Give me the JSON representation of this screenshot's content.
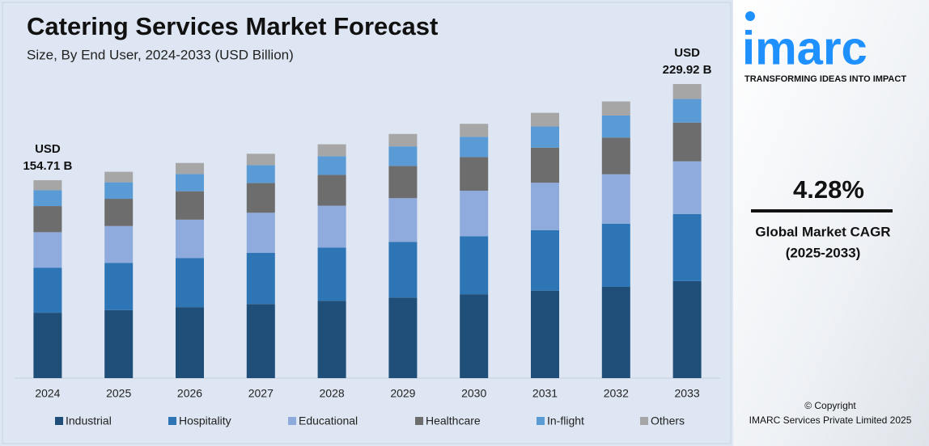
{
  "chart_data": {
    "type": "stacked_bar",
    "title": "Catering Services Market Forecast",
    "subtitle": "Size, By End User, 2024-2033 (USD Billion)",
    "categories": [
      "2024",
      "2025",
      "2026",
      "2027",
      "2028",
      "2029",
      "2030",
      "2031",
      "2032",
      "2033"
    ],
    "series": [
      {
        "name": "Industrial",
        "color": "#1f4e79",
        "values": [
          51.1,
          53.2,
          55.5,
          57.9,
          60.4,
          63.0,
          65.6,
          68.4,
          71.4,
          75.9
        ]
      },
      {
        "name": "Hospitality",
        "color": "#2e75b6",
        "values": [
          35.3,
          36.8,
          38.3,
          40.0,
          41.7,
          43.5,
          45.3,
          47.3,
          49.3,
          52.4
        ]
      },
      {
        "name": "Educational",
        "color": "#8faadc",
        "values": [
          27.7,
          28.9,
          30.1,
          31.4,
          32.7,
          34.2,
          35.6,
          37.1,
          38.7,
          41.2
        ]
      },
      {
        "name": "Healthcare",
        "color": "#6d6d6d",
        "values": [
          20.4,
          21.3,
          22.2,
          23.2,
          24.1,
          25.2,
          26.3,
          27.4,
          28.6,
          30.3
        ]
      },
      {
        "name": "In-flight",
        "color": "#5b9bd5",
        "values": [
          12.4,
          12.9,
          13.5,
          14.0,
          14.6,
          15.3,
          15.9,
          16.6,
          17.3,
          18.4
        ]
      },
      {
        "name": "Others",
        "color": "#a6a6a6",
        "values": [
          7.81,
          8.2,
          8.6,
          8.9,
          9.3,
          9.7,
          10.1,
          10.6,
          11.0,
          11.72
        ]
      }
    ],
    "annotations": [
      {
        "lines": [
          "USD",
          "154.71 B"
        ]
      },
      {
        "lines": [
          "USD",
          "229.92 B"
        ]
      }
    ],
    "legend": "bottom"
  },
  "sidebar": {
    "logo": "imarc",
    "tagline": "TRANSFORMING IDEAS INTO IMPACT",
    "cagr": "4.28%",
    "cagr_label": "Global Market CAGR",
    "cagr_period": "(2025-2033)",
    "copyright": "© Copyright",
    "company": "IMARC Services Private Limited 2025"
  }
}
